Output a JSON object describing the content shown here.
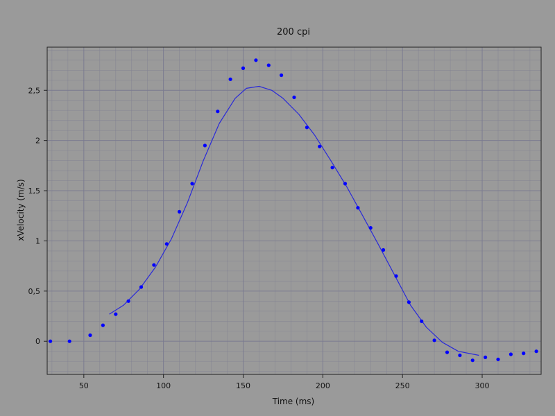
{
  "chart_data": {
    "type": "scatter",
    "title": "200 cpi",
    "xlabel": "Time (ms)",
    "ylabel": "xVelocity (m/s)",
    "xlim": [
      27,
      337
    ],
    "ylim": [
      -0.33,
      2.93
    ],
    "grid": true,
    "x_ticks": [
      {
        "value": 50,
        "label": "50"
      },
      {
        "value": 100,
        "label": "100"
      },
      {
        "value": 150,
        "label": "150"
      },
      {
        "value": 200,
        "label": "200"
      },
      {
        "value": 250,
        "label": "250"
      },
      {
        "value": 300,
        "label": "300"
      }
    ],
    "y_ticks": [
      {
        "value": 0,
        "label": "0"
      },
      {
        "value": 0.5,
        "label": "0,5"
      },
      {
        "value": 1,
        "label": "1"
      },
      {
        "value": 1.5,
        "label": "1,5"
      },
      {
        "value": 2,
        "label": "2"
      },
      {
        "value": 2.5,
        "label": "2,5"
      }
    ],
    "colors": {
      "points": "#0000ff",
      "curve": "#2a2ad8",
      "background": "#9a9a9a",
      "grid": "#7a7a90"
    },
    "series": [
      {
        "kind": "points",
        "x": [
          29,
          41,
          54,
          62,
          70,
          78,
          86,
          94,
          102,
          110,
          118,
          126,
          134,
          142,
          150,
          158,
          166,
          174,
          182,
          190,
          198,
          206,
          214,
          222,
          230,
          238,
          246,
          254,
          262,
          270,
          278,
          286,
          294,
          302,
          310,
          318,
          326,
          334
        ],
        "y": [
          0.0,
          0.0,
          0.06,
          0.16,
          0.27,
          0.4,
          0.54,
          0.76,
          0.97,
          1.29,
          1.57,
          1.95,
          2.29,
          2.61,
          2.72,
          2.8,
          2.75,
          2.65,
          2.43,
          2.13,
          1.94,
          1.73,
          1.57,
          1.33,
          1.13,
          0.91,
          0.65,
          0.39,
          0.2,
          0.01,
          -0.11,
          -0.14,
          -0.19,
          -0.16,
          -0.18,
          -0.13,
          -0.12,
          -0.1
        ]
      },
      {
        "kind": "line",
        "x": [
          66,
          75,
          85,
          95,
          105,
          115,
          125,
          135,
          145,
          152,
          160,
          168,
          175,
          185,
          195,
          205,
          215,
          225,
          235,
          245,
          255,
          265,
          275,
          285,
          298
        ],
        "y": [
          0.27,
          0.36,
          0.52,
          0.74,
          1.02,
          1.38,
          1.8,
          2.17,
          2.42,
          2.52,
          2.54,
          2.5,
          2.42,
          2.26,
          2.05,
          1.8,
          1.54,
          1.25,
          0.96,
          0.66,
          0.36,
          0.14,
          -0.01,
          -0.1,
          -0.14
        ]
      }
    ]
  }
}
